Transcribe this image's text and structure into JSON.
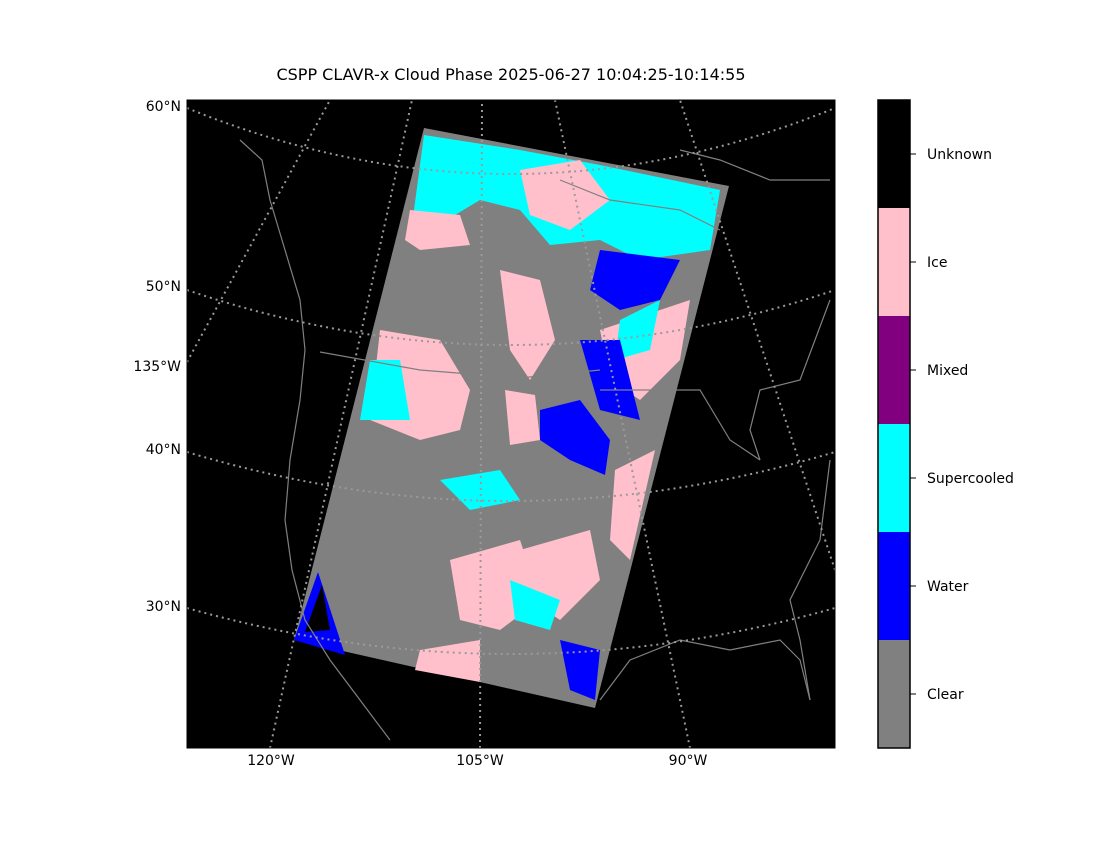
{
  "title": "CSPP CLAVR-x Cloud Phase 2025-06-27 10:04:25-10:14:55",
  "map": {
    "lat_labels": [
      "60°N",
      "50°N",
      "40°N",
      "30°N"
    ],
    "lon_label_left": "135°W",
    "lon_labels_bottom": [
      "120°W",
      "105°W",
      "90°W"
    ]
  },
  "colorbar": {
    "classes": [
      {
        "name": "Unknown",
        "color": "#000000"
      },
      {
        "name": "Ice",
        "color": "#ffc0cb"
      },
      {
        "name": "Mixed",
        "color": "#800080"
      },
      {
        "name": "Supercooled",
        "color": "#00ffff"
      },
      {
        "name": "Water",
        "color": "#0000ff"
      },
      {
        "name": "Clear",
        "color": "#808080"
      }
    ]
  }
}
